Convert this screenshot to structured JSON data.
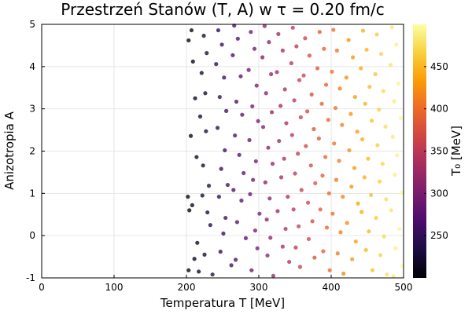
{
  "chart_data": {
    "type": "scatter",
    "title": "Przestrzeń Stanów (T, A) w τ = 0.20 fm/c",
    "xlabel": "Temperatura T [MeV]",
    "ylabel": "Anizotropia A",
    "xlim": [
      0,
      500
    ],
    "ylim": [
      -1,
      5
    ],
    "x_ticks": [
      "0",
      "100",
      "200",
      "300",
      "400",
      "500"
    ],
    "y_ticks": [
      "-1",
      "0",
      "1",
      "2",
      "3",
      "4",
      "5"
    ],
    "grid": true,
    "colorbar": {
      "label": "T₀ [MeV]",
      "range": [
        200,
        500
      ],
      "ticks": [
        "250",
        "300",
        "350",
        "400",
        "450"
      ],
      "colormap": "inferno",
      "stops": [
        "#000004",
        "#1b0c41",
        "#4a0c6b",
        "#781c6d",
        "#a52c60",
        "#cf4446",
        "#ed6925",
        "#fb9b06",
        "#f7d13d",
        "#fcffa4"
      ]
    },
    "point_alpha": 0.78,
    "points": [
      [
        203,
        4.62
      ],
      [
        207,
        4.86
      ],
      [
        209,
        4.12
      ],
      [
        212,
        3.25
      ],
      [
        206,
        2.36
      ],
      [
        214,
        1.86
      ],
      [
        202,
        0.92
      ],
      [
        204,
        0.6
      ],
      [
        208,
        0.72
      ],
      [
        203,
        -0.82
      ],
      [
        211,
        -0.55
      ],
      [
        215,
        -0.17
      ],
      [
        217,
        -0.85
      ],
      [
        224,
        4.73
      ],
      [
        228,
        4.32
      ],
      [
        221,
        3.85
      ],
      [
        226,
        3.37
      ],
      [
        219,
        2.82
      ],
      [
        227,
        2.47
      ],
      [
        223,
        1.66
      ],
      [
        231,
        1.18
      ],
      [
        222,
        0.95
      ],
      [
        229,
        0.55
      ],
      [
        233,
        0.25
      ],
      [
        225,
        -0.45
      ],
      [
        236,
        -0.92
      ],
      [
        244,
        4.86
      ],
      [
        249,
        4.52
      ],
      [
        241,
        4.06
      ],
      [
        252,
        3.74
      ],
      [
        246,
        3.28
      ],
      [
        255,
        2.95
      ],
      [
        243,
        2.55
      ],
      [
        253,
        2.02
      ],
      [
        248,
        1.58
      ],
      [
        257,
        1.2
      ],
      [
        245,
        0.92
      ],
      [
        254,
        0.42
      ],
      [
        251,
        0.05
      ],
      [
        247,
        -0.38
      ],
      [
        262,
        -0.7
      ],
      [
        266,
        4.97
      ],
      [
        271,
        4.66
      ],
      [
        264,
        4.27
      ],
      [
        275,
        3.77
      ],
      [
        269,
        3.17
      ],
      [
        277,
        2.86
      ],
      [
        267,
        2.37
      ],
      [
        273,
        1.91
      ],
      [
        279,
        1.48
      ],
      [
        265,
        1.08
      ],
      [
        276,
        0.83
      ],
      [
        270,
        0.32
      ],
      [
        282,
        -0.06
      ],
      [
        268,
        -0.57
      ],
      [
        289,
        4.82
      ],
      [
        294,
        4.42
      ],
      [
        286,
        3.92
      ],
      [
        297,
        3.55
      ],
      [
        291,
        3.06
      ],
      [
        299,
        2.71
      ],
      [
        287,
        2.26
      ],
      [
        296,
        1.76
      ],
      [
        292,
        1.32
      ],
      [
        288,
        0.98
      ],
      [
        301,
        0.52
      ],
      [
        295,
        0.12
      ],
      [
        298,
        -0.3
      ],
      [
        290,
        -0.82
      ],
      [
        308,
        4.96
      ],
      [
        314,
        4.58
      ],
      [
        305,
        4.22
      ],
      [
        317,
        3.82
      ],
      [
        310,
        3.37
      ],
      [
        318,
        2.92
      ],
      [
        306,
        2.57
      ],
      [
        313,
        2.08
      ],
      [
        319,
        1.7
      ],
      [
        309,
        1.26
      ],
      [
        315,
        0.88
      ],
      [
        311,
        0.38
      ],
      [
        316,
        -0.05
      ],
      [
        312,
        -0.47
      ],
      [
        320,
        -0.95
      ],
      [
        327,
        4.77
      ],
      [
        333,
        4.38
      ],
      [
        325,
        3.87
      ],
      [
        336,
        3.46
      ],
      [
        330,
        3.07
      ],
      [
        338,
        2.66
      ],
      [
        328,
        2.24
      ],
      [
        335,
        1.82
      ],
      [
        331,
        1.38
      ],
      [
        340,
        0.92
      ],
      [
        326,
        0.58
      ],
      [
        337,
        0.16
      ],
      [
        333,
        -0.26
      ],
      [
        342,
        -0.62
      ],
      [
        347,
        4.92
      ],
      [
        352,
        4.48
      ],
      [
        345,
        4.08
      ],
      [
        356,
        3.68
      ],
      [
        349,
        3.2
      ],
      [
        358,
        2.8
      ],
      [
        346,
        2.38
      ],
      [
        354,
        1.94
      ],
      [
        350,
        1.47
      ],
      [
        359,
        1.08
      ],
      [
        348,
        0.62
      ],
      [
        355,
        0.22
      ],
      [
        351,
        -0.28
      ],
      [
        357,
        -0.74
      ],
      [
        364,
        4.67
      ],
      [
        370,
        4.26
      ],
      [
        362,
        3.79
      ],
      [
        373,
        3.34
      ],
      [
        367,
        2.94
      ],
      [
        376,
        2.52
      ],
      [
        365,
        2.12
      ],
      [
        372,
        1.66
      ],
      [
        378,
        1.24
      ],
      [
        368,
        0.78
      ],
      [
        374,
        0.34
      ],
      [
        369,
        -0.08
      ],
      [
        377,
        -0.52
      ],
      [
        384,
        4.82
      ],
      [
        390,
        4.42
      ],
      [
        381,
        3.96
      ],
      [
        393,
        3.57
      ],
      [
        387,
        3.12
      ],
      [
        396,
        2.74
      ],
      [
        383,
        2.3
      ],
      [
        392,
        1.86
      ],
      [
        388,
        1.42
      ],
      [
        397,
        1.0
      ],
      [
        385,
        0.62
      ],
      [
        394,
        0.19
      ],
      [
        389,
        -0.37
      ],
      [
        398,
        -0.82
      ],
      [
        403,
        4.87
      ],
      [
        408,
        4.38
      ],
      [
        401,
        3.88
      ],
      [
        412,
        3.48
      ],
      [
        406,
        3.02
      ],
      [
        415,
        2.62
      ],
      [
        404,
        2.18
      ],
      [
        411,
        1.77
      ],
      [
        407,
        1.32
      ],
      [
        416,
        0.92
      ],
      [
        402,
        0.52
      ],
      [
        413,
        0.08
      ],
      [
        409,
        -0.42
      ],
      [
        417,
        -0.9
      ],
      [
        424,
        4.63
      ],
      [
        430,
        4.22
      ],
      [
        421,
        3.74
      ],
      [
        433,
        3.28
      ],
      [
        427,
        2.88
      ],
      [
        436,
        2.46
      ],
      [
        425,
        2.02
      ],
      [
        432,
        1.6
      ],
      [
        428,
        1.16
      ],
      [
        437,
        0.76
      ],
      [
        422,
        0.3
      ],
      [
        434,
        -0.14
      ],
      [
        429,
        -0.56
      ],
      [
        444,
        4.85
      ],
      [
        449,
        4.4
      ],
      [
        441,
        3.96
      ],
      [
        453,
        3.52
      ],
      [
        447,
        3.12
      ],
      [
        456,
        2.72
      ],
      [
        443,
        2.28
      ],
      [
        451,
        1.82
      ],
      [
        446,
        1.38
      ],
      [
        455,
        0.96
      ],
      [
        442,
        0.56
      ],
      [
        452,
        0.1
      ],
      [
        448,
        -0.34
      ],
      [
        457,
        -0.82
      ],
      [
        463,
        4.76
      ],
      [
        469,
        4.3
      ],
      [
        461,
        3.82
      ],
      [
        472,
        3.42
      ],
      [
        466,
        2.98
      ],
      [
        475,
        2.58
      ],
      [
        464,
        2.14
      ],
      [
        471,
        1.7
      ],
      [
        467,
        1.28
      ],
      [
        476,
        0.86
      ],
      [
        462,
        0.42
      ],
      [
        473,
        -0.02
      ],
      [
        468,
        -0.46
      ],
      [
        477,
        -0.92
      ],
      [
        484,
        4.93
      ],
      [
        490,
        4.52
      ],
      [
        482,
        4.04
      ],
      [
        493,
        3.6
      ],
      [
        487,
        3.18
      ],
      [
        496,
        2.78
      ],
      [
        485,
        2.34
      ],
      [
        491,
        1.9
      ],
      [
        488,
        1.44
      ],
      [
        497,
        1.02
      ],
      [
        483,
        0.6
      ],
      [
        494,
        0.16
      ],
      [
        489,
        -0.3
      ],
      [
        498,
        -0.72
      ],
      [
        486,
        -0.96
      ]
    ]
  }
}
